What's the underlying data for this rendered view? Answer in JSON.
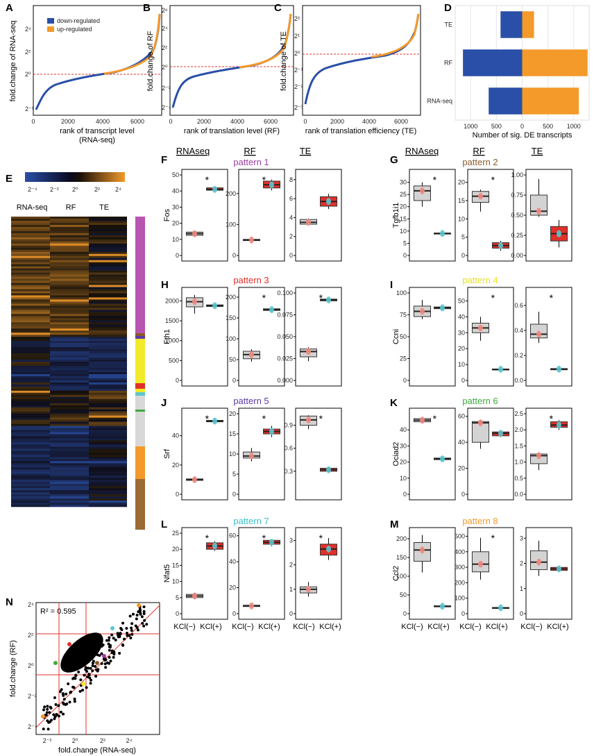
{
  "colors": {
    "down": "#2a4fa8",
    "up": "#f39a2b",
    "nochange": "#000000",
    "refline": "#e0302a",
    "box_grey": "#d3d3d3",
    "box_red": "#e0302a",
    "pt_pink": "#f08a80",
    "pt_cyan": "#5cc6cf"
  },
  "panels": {
    "A": {
      "label": "A",
      "ylabel": "fold.change of RNA-seq",
      "xlabel_1": "rank of transcript level",
      "xlabel_2": "(RNA-seq)",
      "xticks": [
        "0",
        "2000",
        "4000",
        "6000"
      ],
      "yticks": [
        "2⁻¹",
        "2⁰",
        "2²",
        "2⁴"
      ],
      "legend_down": "down-regulated",
      "legend_up": "up-regulated"
    },
    "B": {
      "label": "B",
      "ylabel": "fold.change of RF",
      "xlabel_1": "rank of translation level (RF)",
      "xticks": [
        "0",
        "2000",
        "4000",
        "6000"
      ],
      "yticks": [
        "2⁻⁴",
        "2⁻²",
        "2⁰",
        "2²",
        "2⁴",
        "2⁶"
      ]
    },
    "C": {
      "label": "C",
      "ylabel": "fold.change of TE",
      "xlabel_1": "rank of translation efficiency (TE)",
      "xticks": [
        "0",
        "2000",
        "4000",
        "6000"
      ],
      "yticks": [
        "2⁻³",
        "2⁻²",
        "2⁻¹",
        "2⁰",
        "2¹",
        "2²"
      ]
    },
    "D": {
      "label": "D",
      "xlabel": "Number of sig. DE transcripts",
      "xticks": [
        "1000",
        "500",
        "0",
        "500",
        "1000"
      ]
    },
    "E": {
      "label": "E",
      "cols": [
        "RNA-seq",
        "RF",
        "TE"
      ],
      "scale_ticks": [
        "2⁻⁴",
        "2⁻²",
        "2⁰",
        "2²",
        "2⁴"
      ]
    },
    "N": {
      "label": "N",
      "r2": "R² = 0.595",
      "ylabel": "fold.change (RF)",
      "xlabel": "fold.change (RNA-seq)",
      "xticks": [
        "2⁻²",
        "2⁰",
        "2²",
        "2⁴"
      ],
      "yticks": [
        "2⁻⁴",
        "2⁻²",
        "2⁰",
        "2²",
        "2⁴"
      ]
    }
  },
  "box_headers": {
    "rnaseq": "RNAseq",
    "rf": "RF",
    "te": "TE"
  },
  "kcl_labels": [
    "KCl(−)",
    "KCl(+)"
  ],
  "chart_data": [
    {
      "type": "bar",
      "panel": "D",
      "categories": [
        "TE",
        "RF",
        "RNA-seq"
      ],
      "series": [
        {
          "name": "down-regulated",
          "values": [
            420,
            1150,
            650
          ]
        },
        {
          "name": "up-regulated",
          "values": [
            230,
            1270,
            1100
          ]
        }
      ],
      "xlim": [
        -1300,
        1300
      ]
    },
    {
      "type": "box",
      "panel": "F",
      "title": "pattern 1",
      "title_color": "#9b3fa0",
      "gene": "Fos",
      "subplots": [
        {
          "ylim": [
            0,
            50
          ],
          "yticks": [
            "0",
            "10",
            "20",
            "30",
            "40",
            "50"
          ],
          "neg": {
            "q1": 12.5,
            "med": 13.5,
            "q3": 14.5,
            "wmin": 12,
            "wmax": 15,
            "pts": [
              13.5
            ]
          },
          "pos": {
            "q1": 40.5,
            "med": 41,
            "q3": 42,
            "wmin": 40,
            "wmax": 42.5,
            "pts": [
              41
            ]
          },
          "star": true
        },
        {
          "ylim": [
            0,
            260
          ],
          "yticks": [
            "0",
            "100",
            "200"
          ],
          "neg": {
            "q1": 48,
            "med": 50,
            "q3": 52,
            "wmin": 47,
            "wmax": 53,
            "pts": [
              50
            ]
          },
          "pos": {
            "q1": 218,
            "med": 228,
            "q3": 240,
            "wmin": 210,
            "wmax": 245,
            "pts": [
              228
            ]
          },
          "star": true
        },
        {
          "ylim": [
            0,
            8.5
          ],
          "yticks": [
            "0",
            "2",
            "4",
            "6",
            "8"
          ],
          "neg": {
            "q1": 3.3,
            "med": 3.5,
            "q3": 3.8,
            "wmin": 3.2,
            "wmax": 3.9,
            "pts": [
              3.5
            ]
          },
          "pos": {
            "q1": 5.2,
            "med": 5.7,
            "q3": 6.2,
            "wmin": 4.9,
            "wmax": 6.5,
            "pts": [
              5.7
            ]
          },
          "star": false
        }
      ]
    },
    {
      "type": "box",
      "panel": "G",
      "title": "pattern 2",
      "title_color": "#8a5a2b",
      "gene": "Tgfb1i1",
      "subplots": [
        {
          "ylim": [
            0,
            33
          ],
          "yticks": [
            "0",
            "5",
            "10",
            "15",
            "20",
            "25",
            "30"
          ],
          "neg": {
            "q1": 22.5,
            "med": 26.5,
            "q3": 28.5,
            "wmin": 20,
            "wmax": 30,
            "pts": [
              26
            ]
          },
          "pos": {
            "q1": 8.8,
            "med": 9,
            "q3": 9.2,
            "wmin": 8.6,
            "wmax": 9.4,
            "pts": [
              9
            ]
          },
          "star": true
        },
        {
          "ylim": [
            0,
            22
          ],
          "yticks": [
            "0",
            "5",
            "10",
            "15",
            "20"
          ],
          "neg": {
            "q1": 14.5,
            "med": 16.2,
            "q3": 17.5,
            "wmin": 12,
            "wmax": 18,
            "pts": [
              16.2
            ]
          },
          "pos": {
            "q1": 2,
            "med": 2.7,
            "q3": 3.5,
            "wmin": 1.3,
            "wmax": 4,
            "pts": [
              2.7
            ]
          },
          "star": true
        },
        {
          "ylim": [
            0,
            1
          ],
          "yticks": [
            "0.00",
            "0.25",
            "0.50",
            "0.75",
            "1.00"
          ],
          "neg": {
            "q1": 0.5,
            "med": 0.55,
            "q3": 0.75,
            "wmin": 0.48,
            "wmax": 0.95,
            "pts": [
              0.55
            ]
          },
          "pos": {
            "q1": 0.18,
            "med": 0.27,
            "q3": 0.36,
            "wmin": 0.1,
            "wmax": 0.44,
            "pts": [
              0.27
            ]
          },
          "star": false
        }
      ]
    },
    {
      "type": "box",
      "panel": "H",
      "title": "pattern 3",
      "title_color": "#e0302a",
      "gene": "Fth1",
      "subplots": [
        {
          "ylim": [
            0,
            2200
          ],
          "yticks": [
            "0",
            "500",
            "1000",
            "1500",
            "2000"
          ],
          "neg": {
            "q1": 1850,
            "med": 1980,
            "q3": 2080,
            "wmin": 1680,
            "wmax": 2150,
            "pts": [
              1980
            ]
          },
          "pos": {
            "q1": 1860,
            "med": 1880,
            "q3": 1900,
            "wmin": 1840,
            "wmax": 1920,
            "pts": [
              1880
            ]
          },
          "star": false
        },
        {
          "ylim": [
            0,
            210
          ],
          "yticks": [
            "0",
            "50",
            "100",
            "150",
            "200"
          ],
          "neg": {
            "q1": 52,
            "med": 62,
            "q3": 70,
            "wmin": 45,
            "wmax": 75,
            "pts": [
              62
            ]
          },
          "pos": {
            "q1": 168,
            "med": 170,
            "q3": 172,
            "wmin": 166,
            "wmax": 174,
            "pts": [
              170
            ]
          },
          "star": true
        },
        {
          "ylim": [
            0,
            0.1
          ],
          "yticks": [
            "0.000",
            "0.025",
            "0.050",
            "0.075",
            "0.100"
          ],
          "neg": {
            "q1": 0.027,
            "med": 0.033,
            "q3": 0.036,
            "wmin": 0.022,
            "wmax": 0.038,
            "pts": [
              0.033
            ]
          },
          "pos": {
            "q1": 0.091,
            "med": 0.092,
            "q3": 0.093,
            "wmin": 0.09,
            "wmax": 0.094,
            "pts": [
              0.092
            ]
          },
          "star": true
        }
      ]
    },
    {
      "type": "box",
      "panel": "I",
      "title": "pattern 4",
      "title_color": "#e8e020",
      "gene": "Ccni",
      "subplots": [
        {
          "ylim": [
            0,
            100
          ],
          "yticks": [
            "0",
            "25",
            "50",
            "75",
            "100"
          ],
          "neg": {
            "q1": 73,
            "med": 79,
            "q3": 85,
            "wmin": 70,
            "wmax": 92,
            "pts": [
              79
            ]
          },
          "pos": {
            "q1": 82,
            "med": 83,
            "q3": 84,
            "wmin": 81,
            "wmax": 85,
            "pts": [
              83
            ]
          },
          "star": false
        },
        {
          "ylim": [
            0,
            55
          ],
          "yticks": [
            "0",
            "10",
            "20",
            "30",
            "40",
            "50"
          ],
          "neg": {
            "q1": 30,
            "med": 33,
            "q3": 36,
            "wmin": 25,
            "wmax": 40,
            "pts": [
              33
            ]
          },
          "pos": {
            "q1": 6.8,
            "med": 7,
            "q3": 7.2,
            "wmin": 6.6,
            "wmax": 7.4,
            "pts": [
              7
            ]
          },
          "star": true
        },
        {
          "ylim": [
            0,
            0.7
          ],
          "yticks": [
            "0.0",
            "0.2",
            "0.4",
            "0.6"
          ],
          "neg": {
            "q1": 0.34,
            "med": 0.37,
            "q3": 0.45,
            "wmin": 0.3,
            "wmax": 0.55,
            "pts": [
              0.37
            ]
          },
          "pos": {
            "q1": 0.085,
            "med": 0.09,
            "q3": 0.095,
            "wmin": 0.08,
            "wmax": 0.1,
            "pts": [
              0.09
            ]
          },
          "star": true
        }
      ]
    },
    {
      "type": "box",
      "panel": "J",
      "title": "pattern 5",
      "title_color": "#5b3aa8",
      "gene": "Srf",
      "subplots": [
        {
          "ylim": [
            0,
            55
          ],
          "yticks": [
            "0",
            "20",
            "40"
          ],
          "neg": {
            "q1": 9.5,
            "med": 10,
            "q3": 10.5,
            "wmin": 9,
            "wmax": 11,
            "pts": [
              10
            ]
          },
          "pos": {
            "q1": 49.5,
            "med": 50,
            "q3": 50.5,
            "wmin": 49,
            "wmax": 51,
            "pts": [
              50
            ]
          },
          "star": true
        },
        {
          "ylim": [
            0,
            20
          ],
          "yticks": [
            "0",
            "5",
            "10",
            "15",
            "20"
          ],
          "neg": {
            "q1": 9,
            "med": 9.5,
            "q3": 10.5,
            "wmin": 8.2,
            "wmax": 11.5,
            "pts": [
              9.5
            ]
          },
          "pos": {
            "q1": 15,
            "med": 15.6,
            "q3": 16.2,
            "wmin": 14.2,
            "wmax": 17,
            "pts": [
              15.6
            ]
          },
          "star": true
        },
        {
          "ylim": [
            0,
            1.05
          ],
          "yticks": [
            "0.3",
            "0.6",
            "0.9"
          ],
          "neg": {
            "q1": 0.9,
            "med": 0.97,
            "q3": 1.02,
            "wmin": 0.85,
            "wmax": 1.03,
            "pts": [
              0.97
            ]
          },
          "pos": {
            "q1": 0.3,
            "med": 0.32,
            "q3": 0.34,
            "wmin": 0.28,
            "wmax": 0.35,
            "pts": [
              0.32
            ]
          },
          "star": true
        }
      ]
    },
    {
      "type": "box",
      "panel": "K",
      "title": "pattern 6",
      "title_color": "#3caa3c",
      "gene": "Ociad2",
      "subplots": [
        {
          "ylim": [
            0,
            50
          ],
          "yticks": [
            "0",
            "10",
            "20",
            "30",
            "40"
          ],
          "neg": {
            "q1": 45,
            "med": 46,
            "q3": 47,
            "wmin": 44.5,
            "wmax": 48,
            "pts": [
              46
            ]
          },
          "pos": {
            "q1": 21.5,
            "med": 22,
            "q3": 22.5,
            "wmin": 21,
            "wmax": 23,
            "pts": [
              22
            ]
          },
          "star": true
        },
        {
          "ylim": [
            0,
            62
          ],
          "yticks": [
            "0",
            "20",
            "40",
            "60"
          ],
          "neg": {
            "q1": 40,
            "med": 55,
            "q3": 56,
            "wmin": 35,
            "wmax": 57,
            "pts": [
              55
            ]
          },
          "pos": {
            "q1": 45,
            "med": 47,
            "q3": 48,
            "wmin": 44,
            "wmax": 49,
            "pts": [
              47
            ]
          },
          "star": false
        },
        {
          "ylim": [
            0,
            2.5
          ],
          "yticks": [
            "0.0",
            "0.5",
            "1.0",
            "1.5",
            "2.0",
            "2.5"
          ],
          "neg": {
            "q1": 0.95,
            "med": 1.2,
            "q3": 1.25,
            "wmin": 0.75,
            "wmax": 1.3,
            "pts": [
              1.2
            ]
          },
          "pos": {
            "q1": 2.08,
            "med": 2.15,
            "q3": 2.25,
            "wmin": 2.0,
            "wmax": 2.3,
            "pts": [
              2.15
            ]
          },
          "star": true
        }
      ]
    },
    {
      "type": "box",
      "panel": "L",
      "title": "pattern 7",
      "title_color": "#3cc0cc",
      "gene": "Nfat5",
      "subplots": [
        {
          "ylim": [
            0,
            25
          ],
          "yticks": [
            "0",
            "5",
            "10",
            "15",
            "20",
            "25"
          ],
          "neg": {
            "q1": 5,
            "med": 5.5,
            "q3": 6,
            "wmin": 4.7,
            "wmax": 6.4,
            "pts": [
              5.5
            ]
          },
          "pos": {
            "q1": 20,
            "med": 21,
            "q3": 22,
            "wmin": 19.5,
            "wmax": 22.5,
            "pts": [
              21
            ]
          },
          "star": true
        },
        {
          "ylim": [
            0,
            62
          ],
          "yticks": [
            "0",
            "20",
            "40",
            "60"
          ],
          "neg": {
            "q1": 5.5,
            "med": 6,
            "q3": 6.5,
            "wmin": 5,
            "wmax": 7,
            "pts": [
              6
            ]
          },
          "pos": {
            "q1": 53.5,
            "med": 55,
            "q3": 56.5,
            "wmin": 52,
            "wmax": 57,
            "pts": [
              55
            ]
          },
          "star": true
        },
        {
          "ylim": [
            0,
            3.3
          ],
          "yticks": [
            "0",
            "1",
            "2",
            "3"
          ],
          "neg": {
            "q1": 0.85,
            "med": 1,
            "q3": 1.1,
            "wmin": 0.7,
            "wmax": 1.3,
            "pts": [
              1
            ]
          },
          "pos": {
            "q1": 2.4,
            "med": 2.65,
            "q3": 2.85,
            "wmin": 2.2,
            "wmax": 3.1,
            "pts": [
              2.65
            ]
          },
          "star": true
        }
      ]
    },
    {
      "type": "box",
      "panel": "M",
      "title": "pattern 8",
      "title_color": "#f39a2b",
      "gene": "Ccl2",
      "subplots": [
        {
          "ylim": [
            0,
            215
          ],
          "yticks": [
            "0",
            "50",
            "100",
            "150",
            "200"
          ],
          "neg": {
            "q1": 140,
            "med": 170,
            "q3": 190,
            "wmin": 110,
            "wmax": 210,
            "pts": [
              170
            ]
          },
          "pos": {
            "q1": 19,
            "med": 20,
            "q3": 21,
            "wmin": 18,
            "wmax": 22,
            "pts": [
              20
            ]
          },
          "star": false
        },
        {
          "ylim": [
            0,
            520
          ],
          "yticks": [
            "0",
            "100",
            "200",
            "300",
            "400",
            "500"
          ],
          "neg": {
            "q1": 270,
            "med": 320,
            "q3": 400,
            "wmin": 220,
            "wmax": 490,
            "pts": [
              320
            ]
          },
          "pos": {
            "q1": 36,
            "med": 38,
            "q3": 40,
            "wmin": 34,
            "wmax": 42,
            "pts": [
              38
            ]
          },
          "star": true
        },
        {
          "ylim": [
            0,
            3.2
          ],
          "yticks": [
            "0",
            "1",
            "2",
            "3"
          ],
          "neg": {
            "q1": 1.75,
            "med": 2.05,
            "q3": 2.5,
            "wmin": 1.5,
            "wmax": 2.9,
            "pts": [
              2.05
            ]
          },
          "pos": {
            "q1": 1.72,
            "med": 1.78,
            "q3": 1.84,
            "wmin": 1.68,
            "wmax": 1.88,
            "pts": [
              1.78
            ]
          },
          "star": false
        }
      ]
    }
  ]
}
